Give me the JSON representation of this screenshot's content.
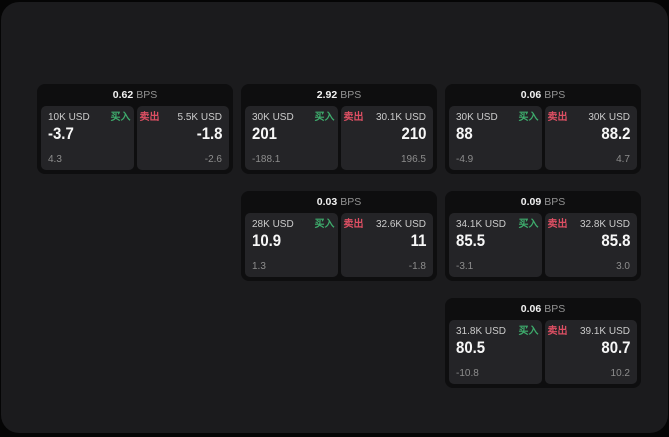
{
  "colors": {
    "buy": "#3ead6d",
    "sell": "#dd4f63"
  },
  "labels": {
    "buy": "买入",
    "sell": "卖出"
  },
  "cards": [
    {
      "bps": "0.62",
      "unit": "BPS",
      "col": 1,
      "row": 1,
      "buy": {
        "amount": "10K USD",
        "price": "-3.7",
        "delta": "4.3"
      },
      "sell": {
        "amount": "5.5K USD",
        "price": "-1.8",
        "delta": "-2.6"
      }
    },
    {
      "bps": "2.92",
      "unit": "BPS",
      "col": 2,
      "row": 1,
      "buy": {
        "amount": "30K USD",
        "price": "201",
        "delta": "-188.1"
      },
      "sell": {
        "amount": "30.1K USD",
        "price": "210",
        "delta": "196.5"
      }
    },
    {
      "bps": "0.06",
      "unit": "BPS",
      "col": 3,
      "row": 1,
      "buy": {
        "amount": "30K USD",
        "price": "88",
        "delta": "-4.9"
      },
      "sell": {
        "amount": "30K USD",
        "price": "88.2",
        "delta": "4.7"
      }
    },
    {
      "bps": "0.03",
      "unit": "BPS",
      "col": 2,
      "row": 2,
      "buy": {
        "amount": "28K USD",
        "price": "10.9",
        "delta": "1.3"
      },
      "sell": {
        "amount": "32.6K USD",
        "price": "11",
        "delta": "-1.8"
      }
    },
    {
      "bps": "0.09",
      "unit": "BPS",
      "col": 3,
      "row": 2,
      "buy": {
        "amount": "34.1K USD",
        "price": "85.5",
        "delta": "-3.1"
      },
      "sell": {
        "amount": "32.8K USD",
        "price": "85.8",
        "delta": "3.0"
      }
    },
    {
      "bps": "0.06",
      "unit": "BPS",
      "col": 3,
      "row": 3,
      "buy": {
        "amount": "31.8K USD",
        "price": "80.5",
        "delta": "-10.8"
      },
      "sell": {
        "amount": "39.1K USD",
        "price": "80.7",
        "delta": "10.2"
      }
    }
  ]
}
